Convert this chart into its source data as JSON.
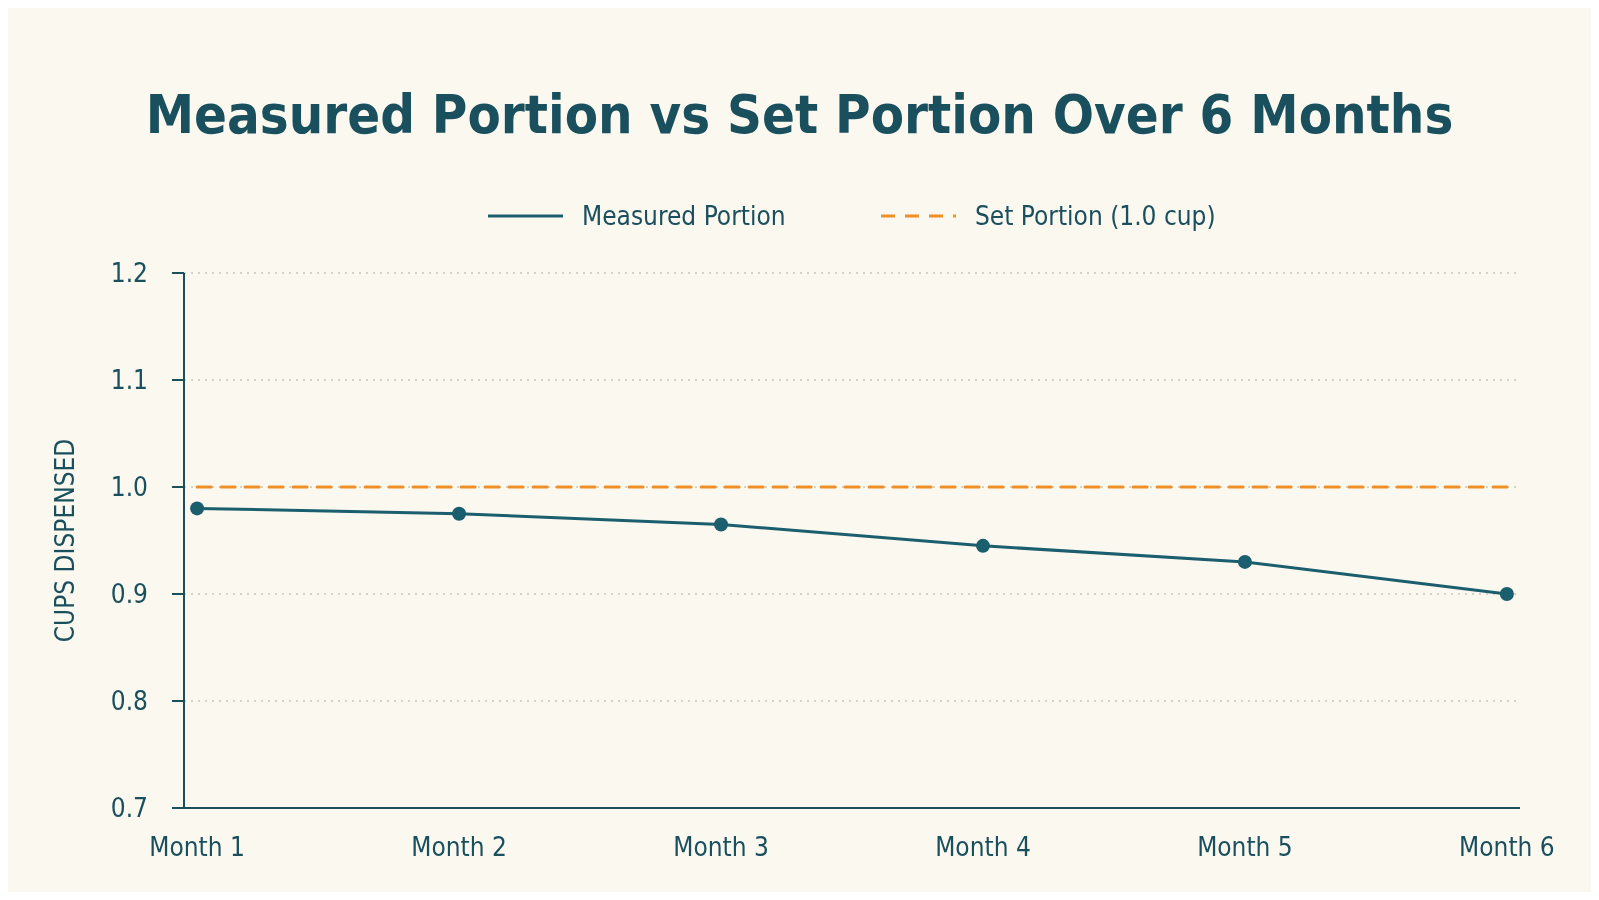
{
  "chart_data": {
    "type": "line",
    "title": "Measured Portion vs Set Portion Over 6 Months",
    "ylabel": "CUPS DISPENSED",
    "categories": [
      "Month 1",
      "Month 2",
      "Month 3",
      "Month 4",
      "Month 5",
      "Month 6"
    ],
    "series": [
      {
        "name": "Measured Portion",
        "color": "#1b5e6e",
        "values": [
          0.98,
          0.975,
          0.965,
          0.945,
          0.93,
          0.9
        ],
        "marker": "circle",
        "line_style": "solid"
      },
      {
        "name": "Set Portion (1.0 cup)",
        "color": "#ee8f2a",
        "values": [
          1.0,
          1.0,
          1.0,
          1.0,
          1.0,
          1.0
        ],
        "marker": "none",
        "line_style": "dashed"
      }
    ],
    "ylim": [
      0.7,
      1.2
    ],
    "yticks": [
      {
        "value": 0.7,
        "label": "0.7"
      },
      {
        "value": 0.8,
        "label": "0.8"
      },
      {
        "value": 0.9,
        "label": "0.9"
      },
      {
        "value": 1.0,
        "label": "1.0"
      },
      {
        "value": 1.1,
        "label": "1.1"
      },
      {
        "value": 1.2,
        "label": "1.2"
      }
    ],
    "grid": "y",
    "legend": "top"
  }
}
